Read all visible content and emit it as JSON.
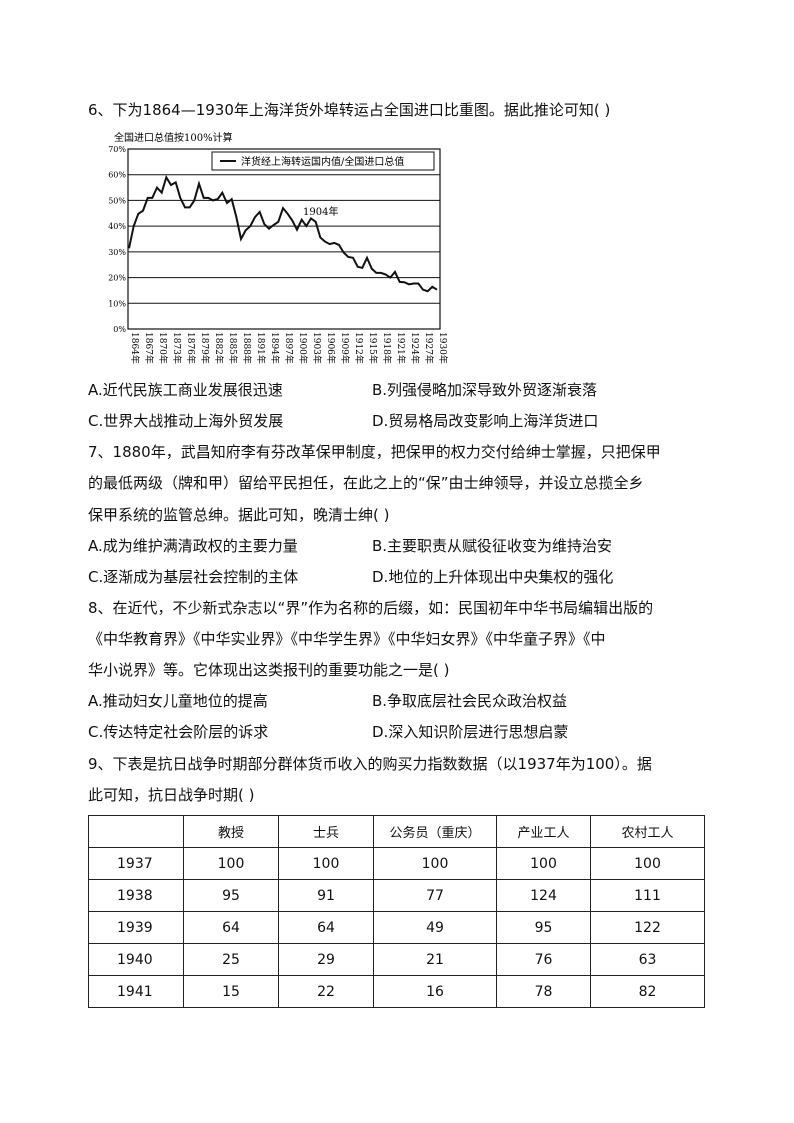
{
  "q6": {
    "stem": "6、下为1864—1930年上海洋货外埠转运占全国进口比重图。据此推论可知( )",
    "options": [
      "A.近代民族工商业发展很迅速",
      "B.列强侵略加深导致外贸逐渐衰落",
      "C.世界大战推动上海外贸发展",
      "D.贸易格局改变影响上海洋货进口"
    ]
  },
  "chart_data": {
    "type": "line",
    "title": "全国进口总值按100%计算",
    "legend": "洋货经上海转运国内值/全国进口总值",
    "legend_position": "top-right",
    "annotation": "1904年",
    "ylim": [
      0,
      70
    ],
    "y_ticks": [
      "0%",
      "10%",
      "20%",
      "30%",
      "40%",
      "50%",
      "60%",
      "70%"
    ],
    "x_ticks": [
      "1864年",
      "1867年",
      "1870年",
      "1873年",
      "1876年",
      "1879年",
      "1882年",
      "1885年",
      "1888年",
      "1891年",
      "1894年",
      "1897年",
      "1900年",
      "1903年",
      "1906年",
      "1909年",
      "1912年",
      "1915年",
      "1918年",
      "1921年",
      "1924年",
      "1927年",
      "1930年"
    ],
    "grid": "horizontal",
    "x": [
      1864,
      1865,
      1866,
      1867,
      1868,
      1869,
      1870,
      1871,
      1872,
      1873,
      1874,
      1875,
      1876,
      1877,
      1878,
      1879,
      1880,
      1881,
      1882,
      1883,
      1884,
      1885,
      1886,
      1887,
      1888,
      1889,
      1890,
      1891,
      1892,
      1893,
      1894,
      1895,
      1896,
      1897,
      1898,
      1899,
      1900,
      1901,
      1902,
      1903,
      1904,
      1905,
      1906,
      1907,
      1908,
      1909,
      1910,
      1911,
      1912,
      1913,
      1914,
      1915,
      1916,
      1917,
      1918,
      1919,
      1920,
      1921,
      1922,
      1923,
      1924,
      1925,
      1926,
      1927,
      1928,
      1929,
      1930
    ],
    "values": [
      31.4,
      40,
      44.8,
      46,
      51,
      51,
      55,
      53,
      59,
      56,
      57,
      51,
      47.3,
      47.3,
      50,
      56.5,
      51,
      51,
      50,
      50.5,
      53,
      49,
      50.5,
      43.6,
      35,
      38.4,
      40,
      43.5,
      45.5,
      40.8,
      39,
      40.5,
      41.7,
      47,
      44.8,
      42.2,
      38.6,
      42.5,
      40,
      43,
      41.7,
      35.6,
      34,
      33,
      33.5,
      32.7,
      29.7,
      28,
      27.7,
      24.2,
      23.8,
      27.7,
      23.5,
      21.8,
      21.8,
      21.2,
      20,
      22.2,
      18.3,
      18.2,
      17.4,
      17.7,
      17.7,
      15.3,
      14.7,
      16.4,
      15.3
    ]
  },
  "q7": {
    "lines": [
      "7、1880年，武昌知府李有芬改革保甲制度，把保甲的权力交付给绅士掌握，只把保甲",
      "的最低两级（牌和甲）留给平民担任，在此之上的“保”由士绅领导，并设立总揽全乡",
      "保甲系统的监管总绅。据此可知，晚清士绅( )"
    ],
    "options": [
      "A.成为维护满清政权的主要力量",
      "B.主要职责从赋役征收变为维持治安",
      "C.逐渐成为基层社会控制的主体",
      "D.地位的上升体现出中央集权的强化"
    ]
  },
  "q8": {
    "lines": [
      "8、在近代，不少新式杂志以“界”作为名称的后缀，如：民国初年中华书局编辑出版的",
      "《中华教育界》《中华实业界》《中华学生界》《中华妇女界》《中华童子界》《中",
      "华小说界》等。它体现出这类报刊的重要功能之一是( )"
    ],
    "options": [
      "A.推动妇女儿童地位的提高",
      "B.争取底层社会民众政治权益",
      "C.传达特定社会阶层的诉求",
      "D.深入知识阶层进行思想启蒙"
    ]
  },
  "q9": {
    "lines": [
      "9、下表是抗日战争时期部分群体货币收入的购买力指数数据（以1937年为100）。据",
      "此可知，抗日战争时期( )"
    ],
    "table": {
      "headers": [
        "",
        "教授",
        "士兵",
        "公务员（重庆）",
        "产业工人",
        "农村工人"
      ],
      "rows": [
        [
          "1937",
          "100",
          "100",
          "100",
          "100",
          "100"
        ],
        [
          "1938",
          "95",
          "91",
          "77",
          "124",
          "111"
        ],
        [
          "1939",
          "64",
          "64",
          "49",
          "95",
          "122"
        ],
        [
          "1940",
          "25",
          "29",
          "21",
          "76",
          "63"
        ],
        [
          "1941",
          "15",
          "22",
          "16",
          "78",
          "82"
        ]
      ]
    }
  }
}
